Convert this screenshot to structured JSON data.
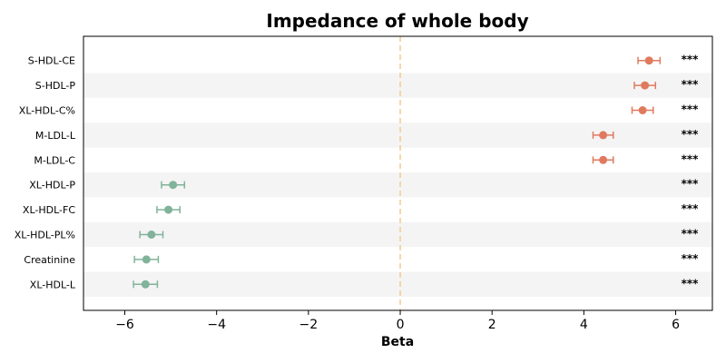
{
  "chart_data": {
    "type": "scatter",
    "title": "Impedance of whole body",
    "xlabel": "Beta",
    "ylabel": "",
    "xlim": [
      -6.9,
      6.8
    ],
    "xticks": [
      -6,
      -4,
      -2,
      0,
      2,
      4,
      6
    ],
    "xtick_labels": [
      "−6",
      "−4",
      "−2",
      "0",
      "2",
      "4",
      "6"
    ],
    "reference_line": 0,
    "row_banding": true,
    "colors": {
      "positive": "#E07A5F",
      "negative": "#81B29A",
      "reference": "#F2CC8F",
      "band": "#F4F4F4"
    },
    "categories": [
      "S-HDL-CE",
      "S-HDL-P",
      "XL-HDL-C%",
      "M-LDL-L",
      "M-LDL-C",
      "XL-HDL-P",
      "XL-HDL-FC",
      "XL-HDL-PL%",
      "Creatinine",
      "XL-HDL-L"
    ],
    "series": [
      {
        "beta": [
          5.42,
          5.33,
          5.28,
          4.42,
          4.42,
          -4.95,
          -5.05,
          -5.42,
          -5.53,
          -5.55
        ],
        "ci_low": [
          5.18,
          5.1,
          5.05,
          4.2,
          4.2,
          -5.2,
          -5.3,
          -5.67,
          -5.79,
          -5.81
        ],
        "ci_high": [
          5.66,
          5.56,
          5.51,
          4.64,
          4.64,
          -4.7,
          -4.8,
          -5.17,
          -5.27,
          -5.29
        ],
        "significance": [
          "***",
          "***",
          "***",
          "***",
          "***",
          "***",
          "***",
          "***",
          "***",
          "***"
        ]
      }
    ]
  }
}
